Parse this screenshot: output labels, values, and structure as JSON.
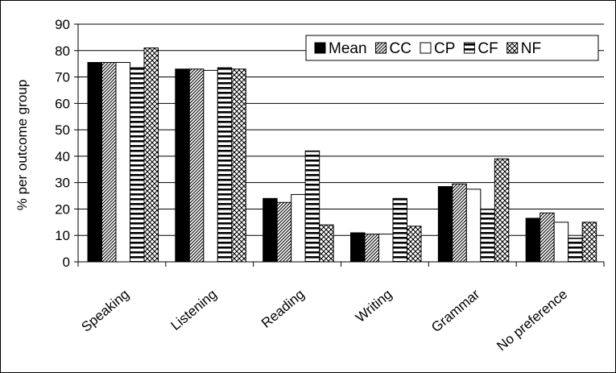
{
  "chart_data": {
    "type": "bar",
    "title": "",
    "xlabel": "",
    "ylabel": "% per outcome group",
    "ylim": [
      0,
      90
    ],
    "yticks": [
      0,
      10,
      20,
      30,
      40,
      50,
      60,
      70,
      80,
      90
    ],
    "categories": [
      "Speaking",
      "Listening",
      "Reading",
      "Writing",
      "Grammar",
      "No preference"
    ],
    "series": [
      {
        "name": "Mean",
        "pattern": "solid",
        "values": [
          75.5,
          73,
          24,
          11,
          28.5,
          16.5
        ]
      },
      {
        "name": "CC",
        "pattern": "diagonal",
        "values": [
          75.5,
          73,
          22.5,
          10.5,
          29.5,
          18.5
        ]
      },
      {
        "name": "CP",
        "pattern": "empty",
        "values": [
          75.5,
          72.5,
          25.5,
          10.5,
          27.5,
          15
        ]
      },
      {
        "name": "CF",
        "pattern": "horizontal",
        "values": [
          73.5,
          73.5,
          42,
          24,
          20,
          9
        ]
      },
      {
        "name": "NF",
        "pattern": "checker",
        "values": [
          81,
          73,
          14,
          13.5,
          39,
          15
        ]
      }
    ],
    "grid": true,
    "legend_position": "top-right",
    "colors": {
      "ink": "#000000",
      "background": "#ffffff",
      "grid": "#000000"
    }
  }
}
